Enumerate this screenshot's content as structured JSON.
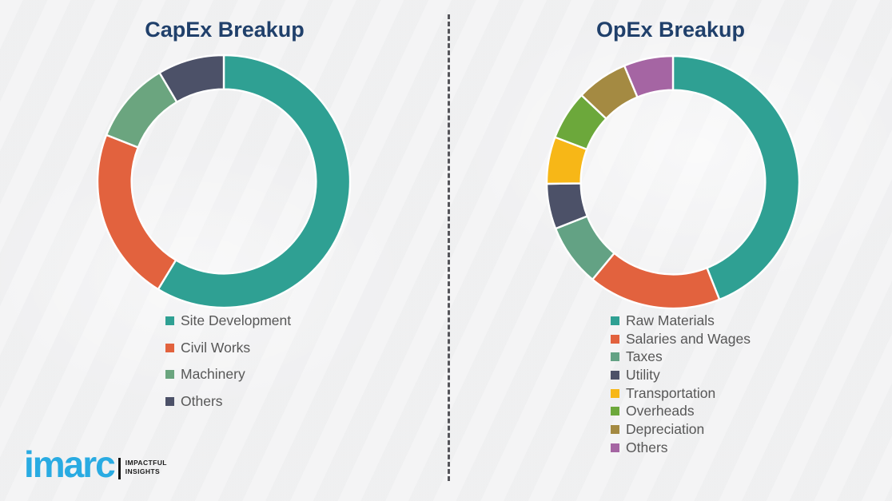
{
  "theme": {
    "background": "#f2f2f3",
    "title_color": "#20406B",
    "legend_text_color": "#575757",
    "divider_color": "#55555a",
    "segment_gap_color": "#ffffff"
  },
  "chart_data": [
    {
      "type": "pie",
      "subtype": "donut",
      "title": "CapEx Breakup",
      "labels": [
        "Site Development",
        "Civil Works",
        "Machinery",
        "Others"
      ],
      "values": [
        58.7,
        22.3,
        10.5,
        8.5
      ],
      "colors": [
        "#2FA093",
        "#E2623E",
        "#6BA57F",
        "#4C5168"
      ],
      "start_angle": 0,
      "direction": "clockwise",
      "hole_ratio": 0.73,
      "legend_position": "bottom-left",
      "data_labels_shown": false
    },
    {
      "type": "pie",
      "subtype": "donut",
      "title": "OpEx Breakup",
      "labels": [
        "Raw Materials",
        "Salaries and Wages",
        "Taxes",
        "Utility",
        "Transportation",
        "Overheads",
        "Depreciation",
        "Others"
      ],
      "values": [
        44,
        17,
        8,
        5.8,
        6,
        6.3,
        6.6,
        6.3
      ],
      "colors": [
        "#2FA093",
        "#E2623E",
        "#63A284",
        "#4C5168",
        "#F7B717",
        "#6CA83B",
        "#A48A42",
        "#A565A3"
      ],
      "start_angle": 0,
      "direction": "clockwise",
      "hole_ratio": 0.73,
      "legend_position": "bottom-left",
      "data_labels_shown": false
    }
  ],
  "logo": {
    "brand": "imarc",
    "tagline_line1": "IMPACTFUL",
    "tagline_line2": "INSIGHTS",
    "brand_color": "#29ABE2"
  }
}
